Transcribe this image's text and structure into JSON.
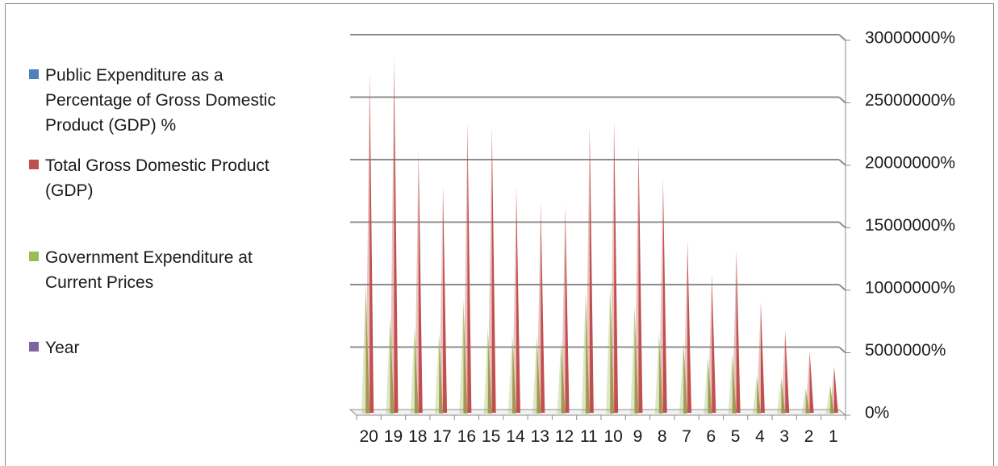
{
  "chart_data": {
    "type": "bar",
    "categories": [
      "20",
      "19",
      "18",
      "17",
      "16",
      "15",
      "14",
      "13",
      "12",
      "11",
      "10",
      "9",
      "8",
      "7",
      "6",
      "5",
      "4",
      "3",
      "2",
      "1"
    ],
    "series": [
      {
        "name": "Public Expenditure as a Percentage of Gross Domestic Product (GDP) %",
        "color": "#4f81bd",
        "values": [
          0,
          0,
          0,
          0,
          0,
          0,
          0,
          0,
          0,
          0,
          0,
          0,
          0,
          0,
          0,
          0,
          0,
          0,
          0,
          0
        ]
      },
      {
        "name": "Total Gross Domestic Product (GDP)",
        "color": "#c0504d",
        "values": [
          27200000,
          28300000,
          20800000,
          18100000,
          23100000,
          22800000,
          17900000,
          16700000,
          16500000,
          22800000,
          23300000,
          21300000,
          18700000,
          13700000,
          11000000,
          12900000,
          8700000,
          6500000,
          4800000,
          3600000
        ]
      },
      {
        "name": "Government Expenditure at Current Prices",
        "color": "#9bbb59",
        "values": [
          10400000,
          7600000,
          6800000,
          6200000,
          8900000,
          6700000,
          6100000,
          6100000,
          5700000,
          9500000,
          10000000,
          8400000,
          6300000,
          5600000,
          4400000,
          4600000,
          2800000,
          2700000,
          1800000,
          2100000
        ]
      },
      {
        "name": "Year",
        "color": "#8064a2",
        "values": [
          0,
          0,
          0,
          0,
          0,
          0,
          0,
          0,
          0,
          0,
          0,
          0,
          0,
          0,
          0,
          0,
          0,
          0,
          0,
          0
        ]
      }
    ],
    "yticks": [
      "0%",
      "5000000%",
      "10000000%",
      "15000000%",
      "20000000%",
      "25000000%",
      "30000000%"
    ],
    "ylim": [
      0,
      30000000
    ],
    "grid": true,
    "legend_position": "left",
    "axis_position": "right"
  },
  "legend": {
    "items": [
      {
        "label_lines": [
          "Public Expenditure as a",
          "Percentage of Gross Domestic",
          "Product (GDP) %"
        ],
        "color": "#4f81bd"
      },
      {
        "label_lines": [
          "Total Gross Domestic Product",
          "(GDP)"
        ],
        "color": "#c0504d"
      },
      {
        "label_lines": [
          "Government Expenditure at",
          "Current Prices"
        ],
        "color": "#9bbb59"
      },
      {
        "label_lines": [
          "Year"
        ],
        "color": "#8064a2"
      }
    ]
  }
}
